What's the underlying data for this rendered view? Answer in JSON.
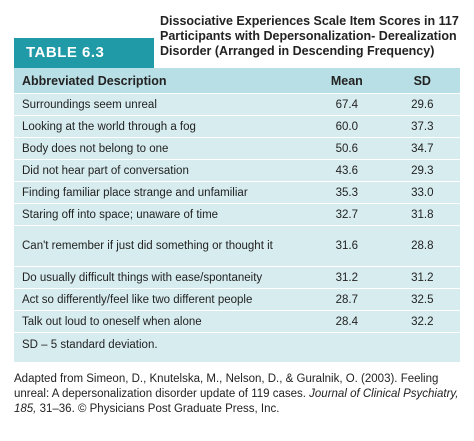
{
  "table_label": "TABLE 6.3",
  "title": "Dissociative Experiences Scale Item Scores in 117 Participants with Depersonalization- Derealization Disorder (Arranged in Descending Frequency)",
  "columns": {
    "description": "Abbreviated Description",
    "mean": "Mean",
    "sd": "SD"
  },
  "rows": [
    {
      "description": "Surroundings seem unreal",
      "mean": "67.4",
      "sd": "29.6"
    },
    {
      "description": "Looking at the world through a fog",
      "mean": "60.0",
      "sd": "37.3"
    },
    {
      "description": "Body does not belong to one",
      "mean": "50.6",
      "sd": "34.7"
    },
    {
      "description": "Did not hear part of conversation",
      "mean": "43.6",
      "sd": "29.3"
    },
    {
      "description": "Finding familiar place strange and unfamiliar",
      "mean": "35.3",
      "sd": "33.0"
    },
    {
      "description": "Staring off into space; unaware of time",
      "mean": "32.7",
      "sd": "31.8"
    },
    {
      "description": "Can't remember if just did something or thought it",
      "mean": "31.6",
      "sd": "28.8"
    },
    {
      "description": "Do usually difficult things with ease/spontaneity",
      "mean": "31.2",
      "sd": "31.2"
    },
    {
      "description": "Act so differently/feel like two different people",
      "mean": "28.7",
      "sd": "32.5"
    },
    {
      "description": "Talk out loud to oneself when alone",
      "mean": "28.4",
      "sd": "32.2"
    }
  ],
  "footnote": "SD – 5 standard deviation.",
  "source": {
    "prefix": "Adapted from Simeon, D., Knutelska, M., Nelson, D., & Guralnik, O. (2003). Feeling unreal: A depersonalization disorder update of 119 cases. ",
    "journal": "Journal of Clinical Psychiatry, 185,",
    "suffix": " 31–36. © Physicians Post Graduate Press, Inc."
  }
}
